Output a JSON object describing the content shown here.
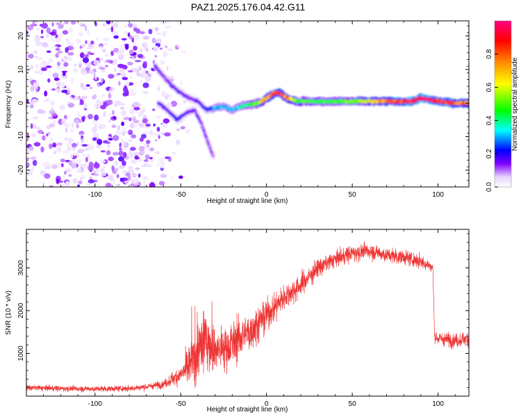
{
  "figure": {
    "title": "PAZ1.2025.176.04.42.G11"
  },
  "chart_data": [
    {
      "type": "heatmap",
      "title": "PAZ1.2025.176.04.42.G11",
      "xlabel": "Height of straight line (km)",
      "ylabel": "Frequency (Hz)",
      "xlim": [
        -140,
        118
      ],
      "ylim": [
        -25,
        24.5
      ],
      "xticks": [
        -100,
        -50,
        0,
        50,
        100
      ],
      "yticks": [
        -20,
        -10,
        0,
        10,
        20
      ],
      "colorbar": {
        "label": "Normalized spectral amplitude",
        "range": [
          0.0,
          1.0
        ],
        "ticks": [
          0.0,
          0.2,
          0.4,
          0.6,
          0.8
        ],
        "tick_labels": [
          "0.0",
          "0.2",
          "0.4",
          "0.6",
          "0.8"
        ],
        "colors": [
          "#ffffff",
          "#d9b3ff",
          "#8000ff",
          "#0000ff",
          "#00ffff",
          "#00ff00",
          "#ffff00",
          "#ff8000",
          "#ff0000",
          "#ff0080"
        ]
      },
      "ridge": {
        "x": [
          -65,
          -60,
          -55,
          -50,
          -45,
          -40,
          -35,
          -30,
          -25,
          -20,
          -15,
          -10,
          -5,
          0,
          5,
          8,
          12,
          18,
          25,
          35,
          50,
          60,
          75,
          85,
          90,
          100,
          110,
          118
        ],
        "freq": [
          11,
          8,
          5,
          3,
          1.5,
          0.5,
          -2,
          -1.5,
          -1,
          -2,
          -1,
          -0.5,
          0,
          1.5,
          3,
          3,
          1.5,
          0.5,
          0.5,
          0.5,
          0.5,
          0.5,
          0.5,
          0.5,
          1.5,
          0.5,
          0,
          0
        ],
        "amplitude": [
          0.15,
          0.12,
          0.15,
          0.15,
          0.12,
          0.15,
          0.2,
          0.3,
          0.3,
          0.3,
          0.35,
          0.4,
          0.5,
          0.7,
          0.8,
          0.85,
          0.75,
          0.5,
          0.45,
          0.45,
          0.5,
          0.6,
          0.85,
          0.9,
          0.95,
          0.9,
          0.8,
          0.75
        ]
      },
      "branch": {
        "x": [
          -63,
          -58,
          -52,
          -47,
          -42,
          -38,
          -34,
          -31
        ],
        "freq": [
          0,
          -2,
          -5,
          -3,
          -2,
          -6,
          -12,
          -16
        ],
        "amplitude": [
          0.15,
          0.15,
          0.2,
          0.15,
          0.15,
          0.12,
          0.12,
          0.1
        ]
      }
    },
    {
      "type": "line",
      "xlabel": "Height of straight line (km)",
      "ylabel": "SNR (10 * v/v)",
      "xlim": [
        -140,
        118
      ],
      "ylim": [
        0,
        3900
      ],
      "xticks": [
        -100,
        -50,
        0,
        50,
        100
      ],
      "yticks": [
        1000,
        2000,
        3000
      ],
      "color": "#ee3333",
      "envelope": {
        "x": [
          -140,
          -120,
          -100,
          -80,
          -70,
          -60,
          -55,
          -50,
          -45,
          -40,
          -37,
          -35,
          -30,
          -25,
          -20,
          -15,
          -10,
          -5,
          0,
          5,
          10,
          20,
          30,
          40,
          50,
          60,
          70,
          80,
          90,
          95,
          97,
          98,
          100,
          110,
          118
        ],
        "mean": [
          200,
          180,
          170,
          180,
          220,
          280,
          400,
          500,
          700,
          1000,
          1300,
          1300,
          1100,
          1100,
          1200,
          1400,
          1500,
          1700,
          1900,
          2100,
          2300,
          2600,
          3000,
          3200,
          3350,
          3400,
          3300,
          3250,
          3150,
          3050,
          3000,
          1400,
          1350,
          1300,
          1350
        ],
        "noise": [
          60,
          60,
          60,
          60,
          70,
          80,
          150,
          200,
          500,
          600,
          900,
          700,
          500,
          500,
          500,
          450,
          450,
          400,
          350,
          300,
          300,
          250,
          200,
          180,
          180,
          170,
          160,
          160,
          150,
          120,
          100,
          100,
          150,
          150,
          150
        ]
      }
    }
  ]
}
